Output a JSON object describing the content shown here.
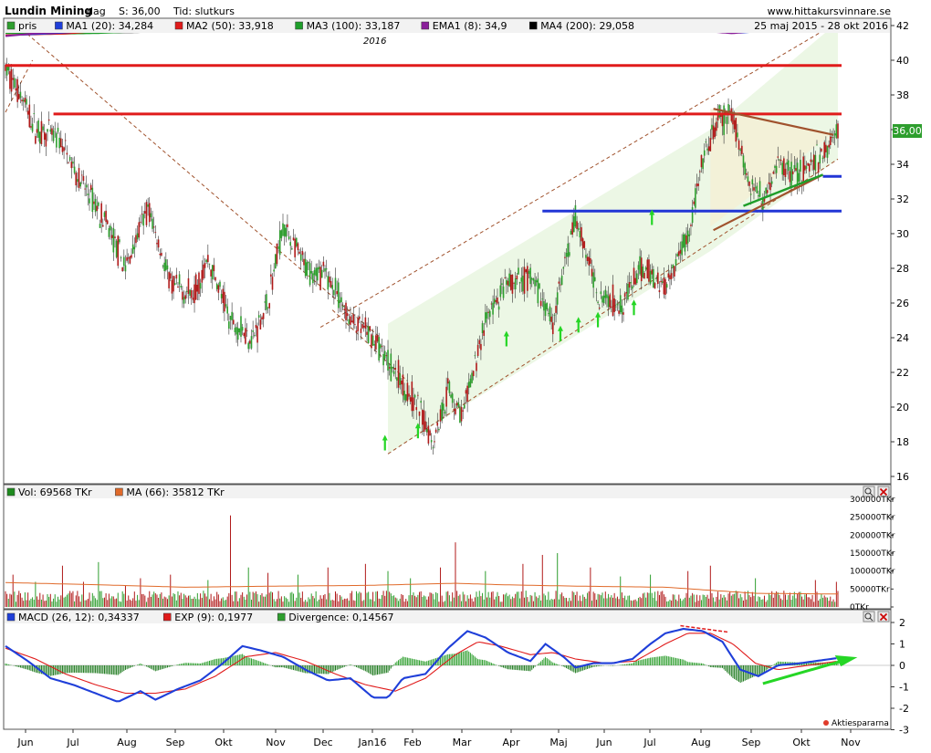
{
  "header": {
    "name": "Lundin Mining",
    "period": "dag",
    "price_label": "S: 36,00",
    "time_label": "Tid: slutkurs",
    "site": "www.hittakursvinnare.se",
    "date_range": "25 maj 2015 - 28 okt 2016"
  },
  "legend_main": [
    {
      "label": "pris",
      "color": "#2e9e2e"
    },
    {
      "label": "MA1 (20): 34,284",
      "color": "#1f3fd9"
    },
    {
      "label": "MA2 (50): 33,918",
      "color": "#e01b1b"
    },
    {
      "label": "MA3 (100): 33,187",
      "color": "#1e9e2a"
    },
    {
      "label": "EMA1 (8): 34,9",
      "color": "#8a1f9a"
    },
    {
      "label": "MA4 (200): 29,058",
      "color": "#000000"
    }
  ],
  "legend_vol": [
    {
      "label": "Vol: 69568 TKr",
      "color": "#1e8a1e"
    },
    {
      "label": "MA (66): 35812 TKr",
      "color": "#e06a2a"
    }
  ],
  "legend_macd": [
    {
      "label": "MACD (26, 12): 0,34337",
      "color": "#1f3fd9"
    },
    {
      "label": "EXP (9): 0,1977",
      "color": "#e01b1b"
    },
    {
      "label": "Divergence: 0,14567",
      "color": "#2e9e2e"
    }
  ],
  "year_label": "2016",
  "price_badge": "36,00",
  "footer_brand": "Aktiespararna",
  "colors": {
    "up": "#2e9e2e",
    "down": "#b01a1a",
    "ma20": "#1f3fd9",
    "ma50": "#e01b1b",
    "ma100": "#1e9e2a",
    "ema8": "#8a1f9a",
    "ma200": "#000000"
  },
  "chart_data": [
    {
      "type": "line",
      "panel": "price",
      "ylim": [
        16,
        42
      ],
      "yticks": [
        16,
        18,
        20,
        22,
        24,
        26,
        28,
        30,
        32,
        34,
        36,
        38,
        40,
        42
      ],
      "x_months": [
        "Jun",
        "Jul",
        "Aug",
        "Sep",
        "Okt",
        "Nov",
        "Dec",
        "Jan16",
        "Feb",
        "Mar",
        "Apr",
        "Maj",
        "Jun",
        "Jul",
        "Aug",
        "Sep",
        "Okt",
        "Nov"
      ],
      "price_anchors": [
        [
          0,
          39.5
        ],
        [
          10,
          38
        ],
        [
          20,
          36
        ],
        [
          35,
          35.5
        ],
        [
          50,
          33
        ],
        [
          65,
          31
        ],
        [
          80,
          28
        ],
        [
          95,
          31.5
        ],
        [
          110,
          27
        ],
        [
          125,
          26.5
        ],
        [
          135,
          28.5
        ],
        [
          150,
          25
        ],
        [
          165,
          24
        ],
        [
          175,
          26
        ],
        [
          185,
          30.5
        ],
        [
          200,
          28
        ],
        [
          215,
          27.5
        ],
        [
          230,
          25
        ],
        [
          245,
          24
        ],
        [
          260,
          22
        ],
        [
          275,
          20
        ],
        [
          285,
          18
        ],
        [
          295,
          21
        ],
        [
          305,
          19.5
        ],
        [
          320,
          25
        ],
        [
          335,
          27
        ],
        [
          350,
          27.5
        ],
        [
          365,
          25
        ],
        [
          375,
          29
        ],
        [
          380,
          31
        ],
        [
          395,
          26.5
        ],
        [
          410,
          26
        ],
        [
          425,
          28
        ],
        [
          440,
          27
        ],
        [
          455,
          30
        ],
        [
          465,
          34
        ],
        [
          475,
          36.5
        ],
        [
          485,
          36.8
        ],
        [
          495,
          33
        ],
        [
          505,
          32
        ],
        [
          515,
          34
        ],
        [
          530,
          33.5
        ],
        [
          545,
          34.5
        ],
        [
          555,
          36
        ]
      ],
      "ma20": [
        [
          0,
          39.2
        ],
        [
          30,
          37
        ],
        [
          60,
          34
        ],
        [
          80,
          30
        ],
        [
          100,
          30
        ],
        [
          130,
          28
        ],
        [
          160,
          25.5
        ],
        [
          190,
          29
        ],
        [
          210,
          28
        ],
        [
          240,
          24.5
        ],
        [
          270,
          21.5
        ],
        [
          290,
          19.5
        ],
        [
          310,
          21.5
        ],
        [
          330,
          25.5
        ],
        [
          360,
          25.5
        ],
        [
          380,
          27.5
        ],
        [
          400,
          27
        ],
        [
          430,
          27.5
        ],
        [
          450,
          28.5
        ],
        [
          470,
          33.5
        ],
        [
          490,
          36.2
        ],
        [
          510,
          33.8
        ],
        [
          530,
          33.7
        ],
        [
          555,
          34.3
        ]
      ],
      "ma50": [
        [
          0,
          38.5
        ],
        [
          40,
          37
        ],
        [
          70,
          33
        ],
        [
          100,
          29.5
        ],
        [
          130,
          27
        ],
        [
          160,
          27.5
        ],
        [
          190,
          28
        ],
        [
          220,
          26.5
        ],
        [
          250,
          24
        ],
        [
          280,
          21.8
        ],
        [
          300,
          21.2
        ],
        [
          320,
          22
        ],
        [
          345,
          24.8
        ],
        [
          370,
          26
        ],
        [
          400,
          27
        ],
        [
          430,
          27
        ],
        [
          450,
          27.3
        ],
        [
          470,
          29.5
        ],
        [
          490,
          32.5
        ],
        [
          515,
          34.2
        ],
        [
          535,
          34.3
        ],
        [
          555,
          33.9
        ]
      ],
      "ma100": [
        [
          0,
          35.8
        ],
        [
          30,
          36.6
        ],
        [
          60,
          36
        ],
        [
          90,
          34
        ],
        [
          120,
          31.8
        ],
        [
          150,
          30
        ],
        [
          180,
          28.2
        ],
        [
          210,
          26.5
        ],
        [
          240,
          25
        ],
        [
          270,
          24.2
        ],
        [
          290,
          24
        ],
        [
          310,
          23.9
        ],
        [
          340,
          24.2
        ],
        [
          370,
          24.8
        ],
        [
          400,
          25.5
        ],
        [
          430,
          26.5
        ],
        [
          460,
          28.2
        ],
        [
          490,
          30
        ],
        [
          520,
          31.6
        ],
        [
          555,
          33.2
        ]
      ],
      "ma200": [
        [
          0,
          35.8
        ],
        [
          40,
          35.6
        ],
        [
          80,
          35
        ],
        [
          120,
          33.8
        ],
        [
          160,
          33
        ],
        [
          200,
          32
        ],
        [
          240,
          30.5
        ],
        [
          270,
          29.4
        ],
        [
          290,
          28.2
        ],
        [
          310,
          26.9
        ],
        [
          330,
          26.1
        ],
        [
          360,
          25.6
        ],
        [
          390,
          25.2
        ],
        [
          420,
          25.1
        ],
        [
          450,
          25.3
        ],
        [
          480,
          26.4
        ],
        [
          510,
          27.4
        ],
        [
          540,
          28.4
        ],
        [
          555,
          29.1
        ]
      ],
      "ema8": [
        [
          0,
          39.5
        ],
        [
          20,
          36.5
        ],
        [
          40,
          35
        ],
        [
          60,
          32
        ],
        [
          80,
          29
        ],
        [
          95,
          31
        ],
        [
          110,
          27.5
        ],
        [
          130,
          26.5
        ],
        [
          140,
          28
        ],
        [
          155,
          25
        ],
        [
          175,
          25.5
        ],
        [
          185,
          30
        ],
        [
          200,
          28
        ],
        [
          220,
          26.5
        ],
        [
          245,
          24.5
        ],
        [
          265,
          22.5
        ],
        [
          280,
          19
        ],
        [
          290,
          18.5
        ],
        [
          310,
          21
        ],
        [
          330,
          25.5
        ],
        [
          345,
          27
        ],
        [
          360,
          25.5
        ],
        [
          380,
          29.5
        ],
        [
          395,
          27
        ],
        [
          410,
          26
        ],
        [
          430,
          27.5
        ],
        [
          450,
          28.5
        ],
        [
          470,
          34.5
        ],
        [
          485,
          36.5
        ],
        [
          500,
          33.5
        ],
        [
          515,
          33.5
        ],
        [
          535,
          34
        ],
        [
          555,
          35
        ]
      ],
      "hlines": [
        {
          "y": 39.7,
          "x0": 0,
          "x1": 555,
          "color": "#e01b1b"
        },
        {
          "y": 36.9,
          "x0": 32,
          "x1": 555,
          "color": "#e01b1b"
        },
        {
          "y": 31.3,
          "x0": 358,
          "x1": 555,
          "color": "#2236d6"
        },
        {
          "y": 33.3,
          "x0": 545,
          "x1": 555,
          "color": "#2236d6"
        }
      ],
      "arrows_day": [
        253,
        275,
        334,
        370,
        382,
        395,
        427,
        433
      ],
      "arrow_y": [
        [
          253,
          17.5
        ],
        [
          275,
          18.2
        ],
        [
          334,
          23.5
        ],
        [
          370,
          23.8
        ],
        [
          382,
          24.3
        ],
        [
          395,
          24.6
        ],
        [
          419,
          25.3
        ],
        [
          431,
          30.5
        ]
      ]
    },
    {
      "type": "bar",
      "panel": "volume",
      "unit": "TKr",
      "yticks": [
        "0TKr",
        "50000TKr",
        "100000TKr",
        "150000TKr",
        "200000TKr",
        "250000TKr",
        "300000TKr"
      ],
      "ytick_values": [
        0,
        50000,
        100000,
        150000,
        200000,
        250000,
        300000
      ],
      "ylim": [
        0,
        310000
      ],
      "baseline": 35000,
      "spikes": [
        [
          5,
          90000
        ],
        [
          20,
          70000
        ],
        [
          38,
          115000
        ],
        [
          52,
          70000
        ],
        [
          62,
          125000
        ],
        [
          80,
          60000
        ],
        [
          90,
          80000
        ],
        [
          110,
          90000
        ],
        [
          135,
          75000
        ],
        [
          150,
          255000
        ],
        [
          162,
          110000
        ],
        [
          175,
          95000
        ],
        [
          195,
          90000
        ],
        [
          215,
          110000
        ],
        [
          240,
          120000
        ],
        [
          255,
          100000
        ],
        [
          270,
          80000
        ],
        [
          290,
          110000
        ],
        [
          300,
          180000
        ],
        [
          320,
          100000
        ],
        [
          345,
          120000
        ],
        [
          358,
          145000
        ],
        [
          368,
          150000
        ],
        [
          390,
          110000
        ],
        [
          410,
          85000
        ],
        [
          430,
          90000
        ],
        [
          455,
          100000
        ],
        [
          470,
          115000
        ],
        [
          500,
          80000
        ],
        [
          540,
          75000
        ],
        [
          554,
          70000
        ]
      ],
      "ma66": [
        [
          0,
          68000
        ],
        [
          60,
          62000
        ],
        [
          120,
          55000
        ],
        [
          180,
          58000
        ],
        [
          240,
          60000
        ],
        [
          300,
          66000
        ],
        [
          330,
          62000
        ],
        [
          380,
          58000
        ],
        [
          440,
          55000
        ],
        [
          500,
          38000
        ],
        [
          555,
          36000
        ]
      ]
    },
    {
      "type": "line",
      "panel": "macd",
      "ylim": [
        -3,
        2.2
      ],
      "yticks": [
        -3,
        -2,
        -1,
        0,
        1,
        2
      ],
      "macd": [
        [
          0,
          0.9
        ],
        [
          15,
          0.2
        ],
        [
          30,
          -0.6
        ],
        [
          45,
          -0.9
        ],
        [
          60,
          -1.3
        ],
        [
          75,
          -1.7
        ],
        [
          90,
          -1.2
        ],
        [
          100,
          -1.6
        ],
        [
          115,
          -1.1
        ],
        [
          130,
          -0.7
        ],
        [
          145,
          0.1
        ],
        [
          158,
          0.9
        ],
        [
          170,
          0.7
        ],
        [
          185,
          0.4
        ],
        [
          200,
          -0.2
        ],
        [
          215,
          -0.7
        ],
        [
          230,
          -0.6
        ],
        [
          245,
          -1.5
        ],
        [
          255,
          -1.5
        ],
        [
          265,
          -0.6
        ],
        [
          280,
          -0.4
        ],
        [
          295,
          0.8
        ],
        [
          308,
          1.6
        ],
        [
          320,
          1.3
        ],
        [
          335,
          0.6
        ],
        [
          350,
          0.2
        ],
        [
          360,
          1.0
        ],
        [
          372,
          0.4
        ],
        [
          380,
          -0.1
        ],
        [
          392,
          0.1
        ],
        [
          405,
          0.1
        ],
        [
          418,
          0.3
        ],
        [
          430,
          1.0
        ],
        [
          440,
          1.5
        ],
        [
          452,
          1.7
        ],
        [
          465,
          1.6
        ],
        [
          478,
          1.1
        ],
        [
          490,
          -0.2
        ],
        [
          502,
          -0.5
        ],
        [
          515,
          0.0
        ],
        [
          530,
          0.1
        ],
        [
          545,
          0.25
        ],
        [
          555,
          0.34
        ]
      ],
      "signal": [
        [
          0,
          0.8
        ],
        [
          20,
          0.3
        ],
        [
          40,
          -0.4
        ],
        [
          60,
          -0.9
        ],
        [
          80,
          -1.3
        ],
        [
          100,
          -1.3
        ],
        [
          120,
          -1.1
        ],
        [
          140,
          -0.5
        ],
        [
          160,
          0.4
        ],
        [
          180,
          0.6
        ],
        [
          200,
          0.2
        ],
        [
          220,
          -0.4
        ],
        [
          240,
          -0.9
        ],
        [
          260,
          -1.2
        ],
        [
          280,
          -0.6
        ],
        [
          300,
          0.5
        ],
        [
          315,
          1.1
        ],
        [
          330,
          0.9
        ],
        [
          350,
          0.5
        ],
        [
          365,
          0.6
        ],
        [
          380,
          0.3
        ],
        [
          400,
          0.1
        ],
        [
          420,
          0.2
        ],
        [
          440,
          1.0
        ],
        [
          455,
          1.5
        ],
        [
          470,
          1.5
        ],
        [
          485,
          1.0
        ],
        [
          500,
          0.1
        ],
        [
          515,
          -0.2
        ],
        [
          535,
          0.0
        ],
        [
          555,
          0.2
        ]
      ]
    }
  ]
}
